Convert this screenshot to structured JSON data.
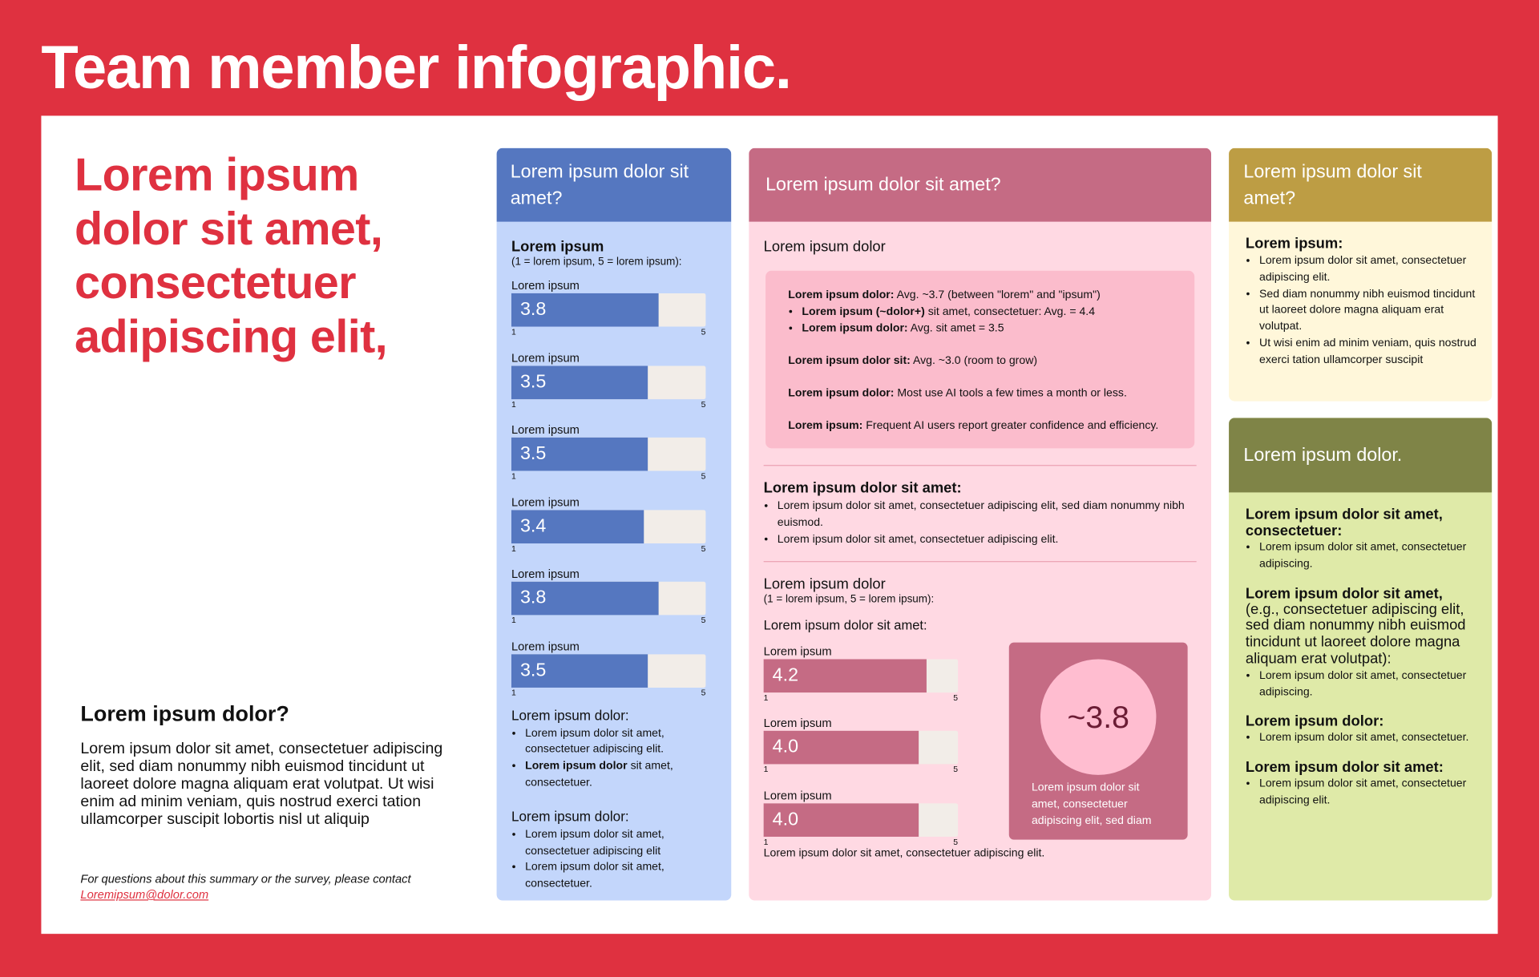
{
  "header": {
    "title": "Team member infographic."
  },
  "intro": {
    "headline": "Lorem ipsum dolor sit amet, consectetuer adipiscing elit,",
    "subheading": "Lorem ipsum dolor?",
    "body": "Lorem ipsum dolor sit amet, consectetuer adipiscing elit, sed diam nonummy nibh euismod tincidunt ut laoreet dolore magna aliquam erat volutpat. Ut wisi enim ad minim veniam, quis nostrud exerci tation ullamcorper suscipit lobortis nisl ut aliquip",
    "contact": "For questions about this summary or the survey, please contact",
    "email": "Loremipsum@dolor.com"
  },
  "blue_card": {
    "title": "Lorem ipsum dolor sit amet?",
    "heading": "Lorem ipsum",
    "scale_note": "(1 = lorem ipsum, 5 = lorem ipsum):",
    "scale": {
      "min": 1,
      "max": 5
    },
    "bars": {
      "labels": [
        "Lorem ipsum",
        "Lorem ipsum",
        "Lorem ipsum",
        "Lorem ipsum",
        "Lorem ipsum",
        "Lorem ipsum"
      ],
      "values": [
        3.8,
        3.5,
        3.5,
        3.4,
        3.8,
        3.5
      ],
      "color": "#5577c0"
    },
    "sections": [
      {
        "heading": "Lorem ipsum dolor:",
        "bullets": [
          {
            "text": "Lorem ipsum dolor sit amet, consectetuer adipiscing elit."
          },
          {
            "bold": "Lorem ipsum dolor",
            "text": "sit amet, consectetuer."
          }
        ]
      },
      {
        "heading": "Lorem ipsum dolor:",
        "bullets": [
          {
            "text": "Lorem ipsum dolor sit amet, consectetuer adipiscing elit"
          },
          {
            "text": "Lorem ipsum dolor sit amet, consectetuer."
          }
        ]
      }
    ]
  },
  "pink_card": {
    "title": "Lorem ipsum dolor sit amet?",
    "heading": "Lorem ipsum dolor",
    "box": [
      {
        "bold": "Lorem ipsum dolor:",
        "text": "Avg. ~3.7 (between \"lorem\" and \"ipsum\")",
        "bullets": [
          {
            "bold": "Lorem ipsum (~dolor+)",
            "text": "sit amet, consectetuer: Avg. = 4.4"
          },
          {
            "bold": "Lorem ipsum dolor:",
            "text": "Avg. sit amet = 3.5"
          }
        ]
      },
      {
        "bold": "Lorem ipsum dolor sit:",
        "text": "Avg. ~3.0 (room to grow)"
      },
      {
        "bold": "Lorem ipsum dolor:",
        "text": "Most use AI tools a few times a month or less."
      },
      {
        "bold": "Lorem ipsum:",
        "text": "Frequent AI users report greater confidence and efficiency."
      }
    ],
    "section": {
      "heading": "Lorem ipsum dolor sit amet:",
      "bullets": [
        {
          "text": "Lorem ipsum dolor sit amet, consectetuer adipiscing elit, sed diam nonummy nibh euismod."
        },
        {
          "text": "Lorem ipsum dolor sit amet, consectetuer adipiscing elit."
        }
      ]
    },
    "ratings": {
      "heading": "Lorem ipsum dolor",
      "scale_note": "(1 = lorem ipsum, 5 = lorem ipsum):",
      "subheading": "Lorem ipsum dolor sit amet:",
      "scale": {
        "min": 1,
        "max": 5
      },
      "bars": {
        "labels": [
          "Lorem ipsum",
          "Lorem ipsum",
          "Lorem ipsum"
        ],
        "values": [
          4.2,
          4,
          4
        ],
        "value_labels": [
          "4.2",
          "4.0",
          "4.0"
        ],
        "color": "#c56b84"
      },
      "score": {
        "label": "~3.8",
        "caption": "Lorem ipsum dolor sit amet, consectetuer adipiscing elit, sed diam"
      },
      "footer": "Lorem ipsum dolor sit amet, consectetuer adipiscing elit."
    }
  },
  "gold_card": {
    "title": "Lorem ipsum dolor sit amet?",
    "heading": "Lorem ipsum:",
    "bullets": [
      {
        "text": "Lorem ipsum dolor sit amet, consectetuer adipiscing elit."
      },
      {
        "text": "Sed diam nonummy nibh euismod tincidunt ut laoreet dolore magna aliquam erat volutpat."
      },
      {
        "text": "Ut wisi enim ad minim veniam, quis nostrud exerci tation ullamcorper suscipit"
      }
    ]
  },
  "green_card": {
    "title": "Lorem ipsum dolor.",
    "sections": [
      {
        "heading": "Lorem ipsum dolor sit amet, consectetuer:",
        "bullets": [
          {
            "text": "Lorem ipsum dolor sit amet, consectetuer adipiscing."
          }
        ]
      },
      {
        "heading": "Lorem ipsum dolor sit amet,",
        "note": "(e.g., consectetuer adipiscing elit, sed diam nonummy nibh euismod tincidunt ut laoreet dolore magna aliquam erat volutpat):",
        "bullets": [
          {
            "text": "Lorem ipsum dolor sit amet, consectetuer adipiscing."
          }
        ]
      },
      {
        "heading": "Lorem ipsum dolor:",
        "bullets": [
          {
            "text": "Lorem ipsum dolor sit amet, consectetuer."
          }
        ]
      },
      {
        "heading": "Lorem ipsum dolor sit amet:",
        "bullets": [
          {
            "text": "Lorem ipsum dolor sit amet, consectetuer adipiscing elit."
          }
        ]
      }
    ]
  }
}
